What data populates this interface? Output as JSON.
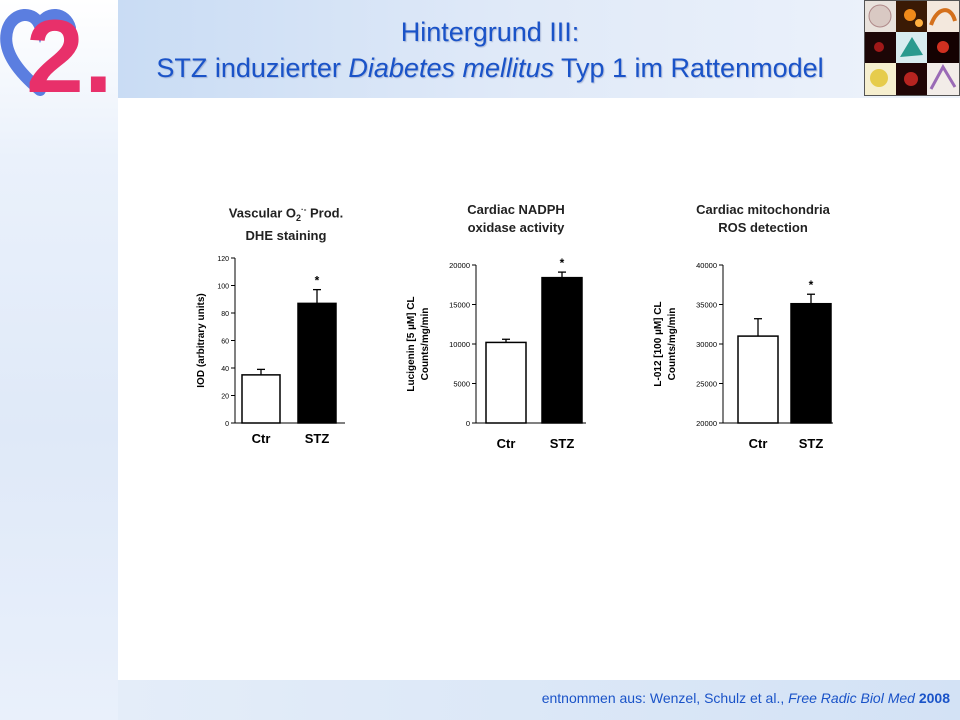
{
  "slide": {
    "logo_text": "2.",
    "title_line1": "Hintergrund III:",
    "title_line2_pre": "STZ induzierter ",
    "title_line2_italic": "Diabetes mellitus",
    "title_line2_post": " Typ 1 im Rattenmodel",
    "footer_pre": "entnommen aus: Wenzel, Schulz et al., ",
    "footer_italic": "Free Radic Biol Med",
    "footer_year": "2008"
  },
  "colors": {
    "title_blue": "#1a53c8",
    "logo_blue": "#5b7ee0",
    "logo_red": "#e8306a",
    "ctr_fill": "#ffffff",
    "stz_fill": "#000000"
  },
  "chart_data": [
    {
      "type": "bar",
      "title_line1": "Vascular O",
      "title_sub": "2",
      "title_sup": "·-",
      "title_line1_post": " Prod.",
      "title_line2": "DHE staining",
      "ylabel": "IOD (arbitrary units)",
      "categories": [
        "Ctr",
        "STZ"
      ],
      "values": [
        35,
        87
      ],
      "errors": [
        4,
        10
      ],
      "significance": [
        "",
        "*"
      ],
      "ylim": [
        0,
        120
      ],
      "yticks": [
        0,
        20,
        40,
        60,
        80,
        100,
        120
      ]
    },
    {
      "type": "bar",
      "title_line1": "Cardiac NADPH",
      "title_line2": "oxidase activity",
      "ylabel": "Lucigenin [5 µM] CL",
      "ylabel2": "Counts/mg/min",
      "categories": [
        "Ctr",
        "STZ"
      ],
      "values": [
        10200,
        18400
      ],
      "errors": [
        400,
        700
      ],
      "significance": [
        "",
        "*"
      ],
      "ylim": [
        0,
        20000
      ],
      "yticks": [
        0,
        5000,
        10000,
        15000,
        20000
      ]
    },
    {
      "type": "bar",
      "title_line1": "Cardiac mitochondria",
      "title_line2": "ROS detection",
      "ylabel": "L-012 [100 µM] CL",
      "ylabel2": "Counts/mg/min",
      "categories": [
        "Ctr",
        "STZ"
      ],
      "values": [
        31000,
        35100
      ],
      "errors": [
        2200,
        1200
      ],
      "significance": [
        "",
        "*"
      ],
      "ylim": [
        20000,
        40000
      ],
      "yticks": [
        20000,
        25000,
        30000,
        35000,
        40000
      ]
    }
  ]
}
